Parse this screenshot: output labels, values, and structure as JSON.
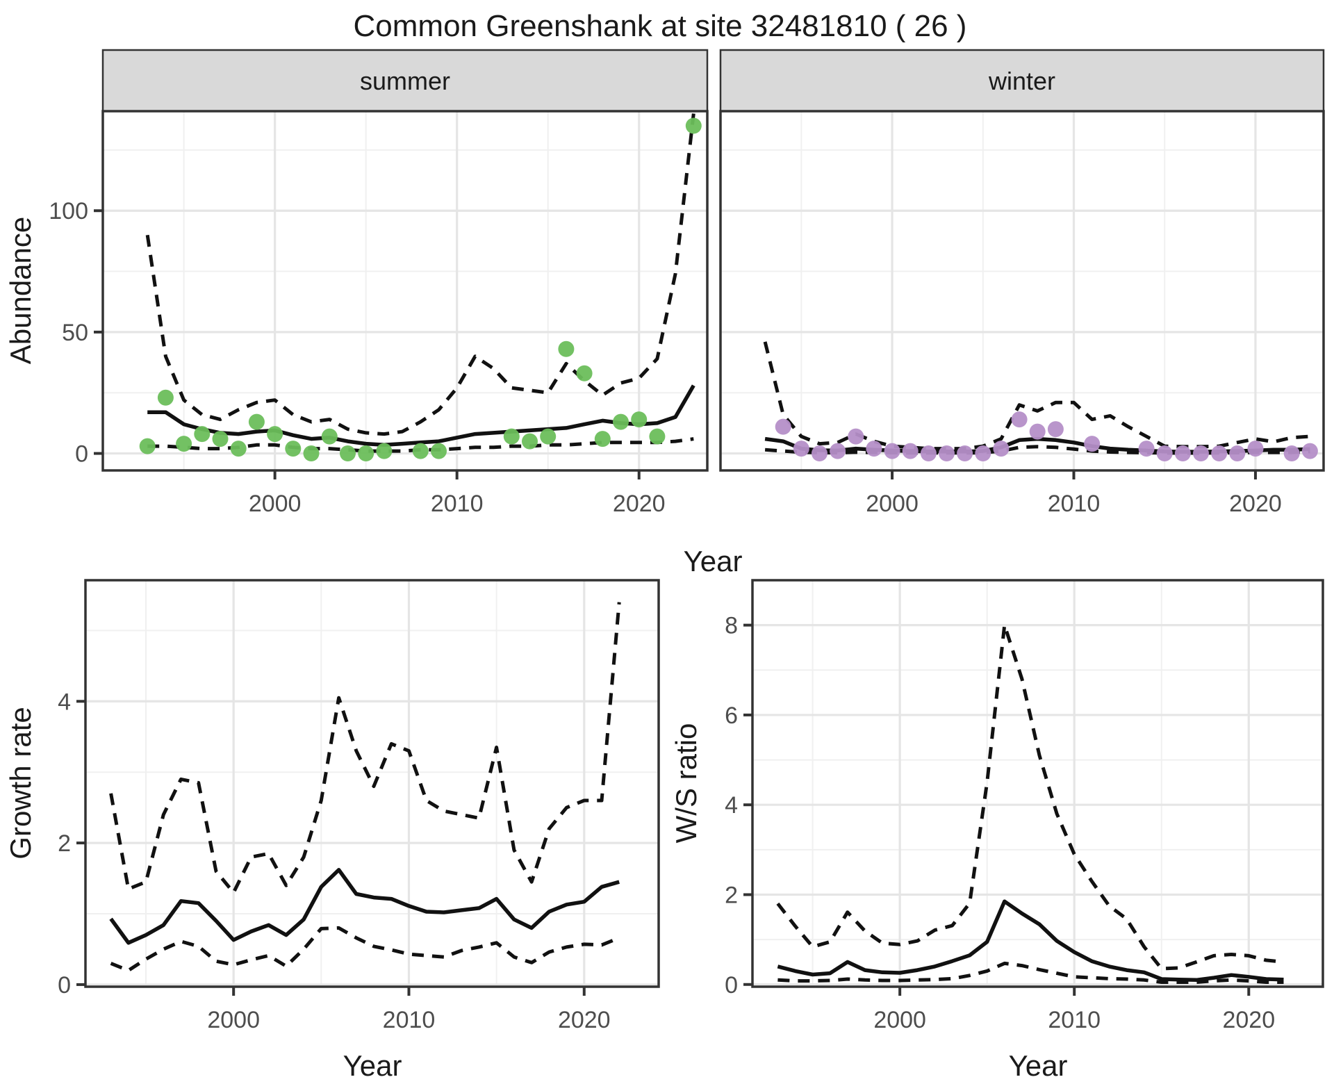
{
  "title": "Common Greenshank at site 32481810 ( 26 )",
  "facets": {
    "summer": "summer",
    "winter": "winter"
  },
  "axes": {
    "year_label_top": "Year",
    "year_label_growth": "Year",
    "year_label_ws": "Year",
    "abundance_label": "Abundance",
    "growth_label": "Growth rate",
    "ws_label": "W/S ratio"
  },
  "colors": {
    "summer_point": "#6CBE5B",
    "winter_point": "#B58FC8",
    "line": "#111111",
    "strip_fill": "#D9D9D9",
    "panel_border": "#333333",
    "grid_major": "#E5E5E5",
    "grid_minor": "#F0F0F0",
    "tick_label": "#4D4D4D",
    "background": "#FFFFFF"
  },
  "chart_data": [
    {
      "id": "abundance-summer",
      "type": "line",
      "facet_label": "summer",
      "ylabel": "Abundance",
      "xlabel": "Year",
      "x_domain": [
        1990.55,
        2023.75
      ],
      "y_domain": [
        -7,
        141
      ],
      "x_ticks": [
        2000,
        2010,
        2020
      ],
      "x_minor": [
        1995,
        2005,
        2015
      ],
      "y_ticks": [
        0,
        50,
        100
      ],
      "y_minor": [
        25,
        75,
        125
      ],
      "show_y_tick_labels": true,
      "show_x_tick_labels": true,
      "point_color_key": "summer_point",
      "years": [
        1993,
        1994,
        1995,
        1996,
        1997,
        1998,
        1999,
        2000,
        2001,
        2002,
        2003,
        2004,
        2005,
        2006,
        2007,
        2008,
        2009,
        2010,
        2011,
        2012,
        2013,
        2014,
        2015,
        2016,
        2017,
        2018,
        2019,
        2020,
        2021,
        2022,
        2023
      ],
      "mean": [
        17,
        17,
        12,
        10,
        8.5,
        8,
        9,
        9.5,
        7.5,
        6,
        6.5,
        5,
        4,
        3.5,
        4,
        4.5,
        5,
        6.5,
        8,
        8.5,
        9,
        9.5,
        10,
        10.5,
        12,
        13.5,
        12.5,
        12,
        12.5,
        15,
        28
      ],
      "upper": [
        90,
        40,
        22,
        16,
        14,
        18,
        21,
        22,
        16,
        13,
        14,
        10,
        8.5,
        8,
        9,
        13,
        18,
        27,
        40,
        35,
        27,
        26,
        25,
        37,
        30,
        24,
        29,
        31,
        39,
        74,
        140
      ],
      "lower": [
        3,
        3,
        2.5,
        2,
        2,
        2.5,
        3.5,
        3.5,
        2.5,
        2,
        2,
        1.5,
        1,
        1,
        1,
        1.5,
        1.5,
        2,
        2.5,
        2.5,
        3,
        3,
        3.5,
        3.5,
        4,
        4.5,
        4.5,
        4.5,
        4.5,
        5,
        6
      ],
      "observations": [
        [
          1993,
          3
        ],
        [
          1994,
          23
        ],
        [
          1995,
          4
        ],
        [
          1996,
          8
        ],
        [
          1997,
          6
        ],
        [
          1998,
          2
        ],
        [
          1999,
          13
        ],
        [
          2000,
          8
        ],
        [
          2001,
          2
        ],
        [
          2002,
          0
        ],
        [
          2003,
          7
        ],
        [
          2004,
          0
        ],
        [
          2005,
          0
        ],
        [
          2006,
          1
        ],
        [
          2008,
          1
        ],
        [
          2009,
          1
        ],
        [
          2013,
          7
        ],
        [
          2014,
          5
        ],
        [
          2015,
          7
        ],
        [
          2016,
          43
        ],
        [
          2017,
          33
        ],
        [
          2018,
          6
        ],
        [
          2019,
          13
        ],
        [
          2020,
          14
        ],
        [
          2021,
          7
        ],
        [
          2023,
          135
        ]
      ]
    },
    {
      "id": "abundance-winter",
      "type": "line",
      "facet_label": "winter",
      "ylabel": "Abundance",
      "xlabel": "Year",
      "x_domain": [
        1990.55,
        2023.75
      ],
      "y_domain": [
        -7,
        141
      ],
      "x_ticks": [
        2000,
        2010,
        2020
      ],
      "x_minor": [
        1995,
        2005,
        2015
      ],
      "y_ticks": [
        0,
        50,
        100
      ],
      "y_minor": [
        25,
        75,
        125
      ],
      "show_y_tick_labels": false,
      "show_x_tick_labels": true,
      "point_color_key": "winter_point",
      "years": [
        1993,
        1994,
        1995,
        1996,
        1997,
        1998,
        1999,
        2000,
        2001,
        2002,
        2003,
        2004,
        2005,
        2006,
        2007,
        2008,
        2009,
        2010,
        2011,
        2012,
        2013,
        2014,
        2015,
        2016,
        2017,
        2018,
        2019,
        2020,
        2021,
        2022,
        2023
      ],
      "mean": [
        6,
        5,
        2,
        1.3,
        1.2,
        2,
        1.5,
        1.2,
        1,
        0.8,
        0.8,
        0.8,
        1,
        2.5,
        5.5,
        6,
        5.5,
        4.5,
        3,
        2,
        1.5,
        1.2,
        0.8,
        0.7,
        0.7,
        0.8,
        1,
        1.2,
        1.5,
        1.5,
        1.8
      ],
      "upper": [
        46,
        16,
        7,
        4,
        4.5,
        8,
        5,
        3,
        2.5,
        2,
        2,
        2,
        3,
        6,
        20,
        17.5,
        21,
        21,
        14,
        15.5,
        11,
        7,
        3,
        2.8,
        2.8,
        3,
        4.5,
        6,
        4.8,
        6.5,
        7
      ],
      "lower": [
        1.5,
        1,
        0.5,
        0.3,
        0.3,
        0.5,
        0.4,
        0.3,
        0.2,
        0.2,
        0.2,
        0.2,
        0.3,
        1,
        2.5,
        2.8,
        2.5,
        1.8,
        1,
        0.6,
        0.4,
        0.3,
        0.2,
        0.15,
        0.15,
        0.2,
        0.3,
        0.4,
        0.4,
        0.4,
        0.8
      ],
      "observations": [
        [
          1994,
          11
        ],
        [
          1995,
          2
        ],
        [
          1996,
          0
        ],
        [
          1997,
          1
        ],
        [
          1998,
          7
        ],
        [
          1999,
          2
        ],
        [
          2000,
          1
        ],
        [
          2001,
          1
        ],
        [
          2002,
          0
        ],
        [
          2003,
          0
        ],
        [
          2004,
          0
        ],
        [
          2005,
          0
        ],
        [
          2006,
          2
        ],
        [
          2007,
          14
        ],
        [
          2008,
          9
        ],
        [
          2009,
          10
        ],
        [
          2011,
          4
        ],
        [
          2014,
          2
        ],
        [
          2015,
          0
        ],
        [
          2016,
          0
        ],
        [
          2017,
          0
        ],
        [
          2018,
          0
        ],
        [
          2019,
          0
        ],
        [
          2020,
          2
        ],
        [
          2022,
          0
        ],
        [
          2023,
          1
        ]
      ]
    },
    {
      "id": "growth-rate",
      "type": "line",
      "facet_label": null,
      "ylabel": "Growth rate",
      "xlabel": "Year",
      "x_domain": [
        1991.55,
        2024.25
      ],
      "y_domain": [
        -0.03,
        5.71
      ],
      "x_ticks": [
        2000,
        2010,
        2020
      ],
      "x_minor": [
        1995,
        2005,
        2015
      ],
      "y_ticks": [
        0,
        2,
        4
      ],
      "y_minor": [
        1,
        3,
        5
      ],
      "show_y_tick_labels": true,
      "show_x_tick_labels": true,
      "point_color_key": null,
      "years": [
        1993,
        1994,
        1995,
        1996,
        1997,
        1998,
        1999,
        2000,
        2001,
        2002,
        2003,
        2004,
        2005,
        2006,
        2007,
        2008,
        2009,
        2010,
        2011,
        2012,
        2013,
        2014,
        2015,
        2016,
        2017,
        2018,
        2019,
        2020,
        2021,
        2022
      ],
      "mean": [
        0.93,
        0.59,
        0.7,
        0.84,
        1.18,
        1.15,
        0.9,
        0.63,
        0.75,
        0.84,
        0.7,
        0.92,
        1.38,
        1.62,
        1.28,
        1.23,
        1.21,
        1.11,
        1.03,
        1.02,
        1.05,
        1.08,
        1.21,
        0.92,
        0.8,
        1.03,
        1.13,
        1.17,
        1.38,
        1.45
      ],
      "upper": [
        2.7,
        1.35,
        1.45,
        2.4,
        2.9,
        2.85,
        1.6,
        1.3,
        1.8,
        1.85,
        1.4,
        1.8,
        2.6,
        4.05,
        3.3,
        2.8,
        3.4,
        3.3,
        2.6,
        2.45,
        2.4,
        2.35,
        3.35,
        1.9,
        1.45,
        2.2,
        2.5,
        2.6,
        2.6,
        5.4
      ],
      "lower": [
        0.3,
        0.2,
        0.36,
        0.5,
        0.61,
        0.54,
        0.33,
        0.28,
        0.35,
        0.41,
        0.26,
        0.5,
        0.79,
        0.8,
        0.66,
        0.54,
        0.49,
        0.43,
        0.41,
        0.39,
        0.48,
        0.53,
        0.59,
        0.39,
        0.31,
        0.46,
        0.53,
        0.57,
        0.56,
        0.66
      ],
      "observations": []
    },
    {
      "id": "ws-ratio",
      "type": "line",
      "facet_label": null,
      "ylabel": "W/S ratio",
      "xlabel": "Year",
      "x_domain": [
        1991.55,
        2024.25
      ],
      "y_domain": [
        -0.05,
        9.0
      ],
      "x_ticks": [
        2000,
        2010,
        2020
      ],
      "x_minor": [
        1995,
        2005,
        2015
      ],
      "y_ticks": [
        0,
        2,
        4,
        6,
        8
      ],
      "y_minor": [
        1,
        3,
        5,
        7
      ],
      "show_y_tick_labels": true,
      "show_x_tick_labels": true,
      "point_color_key": null,
      "years": [
        1993,
        1994,
        1995,
        1996,
        1997,
        1998,
        1999,
        2000,
        2001,
        2002,
        2003,
        2004,
        2005,
        2006,
        2007,
        2008,
        2009,
        2010,
        2011,
        2012,
        2013,
        2014,
        2015,
        2016,
        2017,
        2018,
        2019,
        2020,
        2021,
        2022
      ],
      "mean": [
        0.4,
        0.3,
        0.22,
        0.25,
        0.5,
        0.32,
        0.27,
        0.26,
        0.32,
        0.4,
        0.52,
        0.65,
        0.95,
        1.85,
        1.58,
        1.34,
        0.97,
        0.72,
        0.52,
        0.4,
        0.32,
        0.27,
        0.12,
        0.11,
        0.1,
        0.15,
        0.21,
        0.17,
        0.12,
        0.11
      ],
      "upper": [
        1.8,
        1.3,
        0.84,
        0.95,
        1.61,
        1.19,
        0.92,
        0.89,
        0.97,
        1.21,
        1.31,
        1.81,
        4.5,
        8.0,
        6.8,
        5.1,
        3.8,
        2.9,
        2.3,
        1.75,
        1.46,
        0.84,
        0.35,
        0.37,
        0.5,
        0.64,
        0.67,
        0.64,
        0.54,
        0.5
      ],
      "lower": [
        0.1,
        0.08,
        0.08,
        0.09,
        0.12,
        0.1,
        0.09,
        0.09,
        0.1,
        0.11,
        0.13,
        0.2,
        0.3,
        0.47,
        0.42,
        0.33,
        0.25,
        0.17,
        0.15,
        0.13,
        0.12,
        0.1,
        0.05,
        0.05,
        0.05,
        0.08,
        0.1,
        0.08,
        0.05,
        0.05
      ],
      "observations": []
    }
  ]
}
